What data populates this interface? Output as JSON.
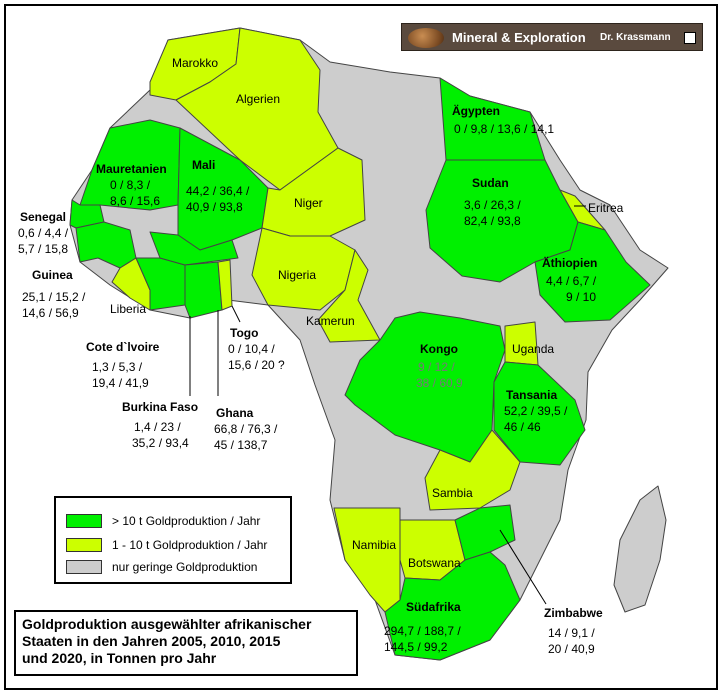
{
  "banner": {
    "title": "Mineral & Exploration",
    "author": "Dr. Krassmann"
  },
  "colors": {
    "high": "#00f000",
    "medium": "#ccff00",
    "low": "#cdcdcd",
    "sea": "#ffffff",
    "border": "#444444"
  },
  "legend": {
    "high": "> 10 t Goldproduktion / Jahr",
    "medium": "1 - 10 t Goldproduktion / Jahr",
    "low": "nur geringe Goldproduktion"
  },
  "map_title": [
    "Goldproduktion ausgewählter afrikanischer",
    "Staaten in den Jahren 2005, 2010, 2015",
    "und 2020, in Tonnen pro Jahr"
  ],
  "countries": {
    "marokko": {
      "name": "Marokko"
    },
    "algerien": {
      "name": "Algerien"
    },
    "mauretanien": {
      "name": "Mauretanien",
      "l1": "0 / 8,3 /",
      "l2": "8,6 / 15,6"
    },
    "mali": {
      "name": "Mali",
      "l1": "44,2 / 36,4 /",
      "l2": "40,9 / 93,8"
    },
    "niger": {
      "name": "Niger"
    },
    "senegal": {
      "name": "Senegal",
      "l1": "0,6 / 4,4 /",
      "l2": "5,7 / 15,8"
    },
    "guinea": {
      "name": "Guinea",
      "l1": "25,1 / 15,2 /",
      "l2": "14,6 / 56,9"
    },
    "liberia": {
      "name": "Liberia"
    },
    "cote": {
      "name": "Cote d`lvoire",
      "l1": "1,3 / 5,3 /",
      "l2": "19,4 / 41,9"
    },
    "burkina": {
      "name": "Burkina Faso",
      "l1": "1,4 / 23 /",
      "l2": "35,2 / 93,4"
    },
    "ghana": {
      "name": "Ghana",
      "l1": "66,8 / 76,3 /",
      "l2": "45 / 138,7"
    },
    "togo": {
      "name": "Togo",
      "l1": "0 / 10,4 /",
      "l2": "15,6 / 20 ?"
    },
    "nigeria": {
      "name": "Nigeria"
    },
    "kamerun": {
      "name": "Kamerun"
    },
    "aegypten": {
      "name": "Ägypten",
      "l1": "0 / 9,8 / 13,6 / 14,1"
    },
    "sudan": {
      "name": "Sudan",
      "l1": "3,6 / 26,3 /",
      "l2": "82,4 / 93,8"
    },
    "eritrea": {
      "name": "Eritrea"
    },
    "aethiopien": {
      "name": "Äthiopien",
      "l1": "4,4 / 6,7 /",
      "l2": "9 / 10"
    },
    "kongo": {
      "name": "Kongo",
      "l1": "9 / 12 /",
      "l2": "38 / 60,9"
    },
    "uganda": {
      "name": "Uganda"
    },
    "tansania": {
      "name": "Tansania",
      "l1": "52,2 / 39,5 /",
      "l2": "46 / 46"
    },
    "sambia": {
      "name": "Sambia"
    },
    "namibia": {
      "name": "Namibia"
    },
    "botswana": {
      "name": "Botswana"
    },
    "zimbabwe": {
      "name": "Zimbabwe",
      "l1": "14 / 9,1 /",
      "l2": "20 / 40,9"
    },
    "suedafrika": {
      "name": "Südafrika",
      "l1": "294,7 / 188,7 /",
      "l2": "144,5 / 99,2"
    }
  }
}
